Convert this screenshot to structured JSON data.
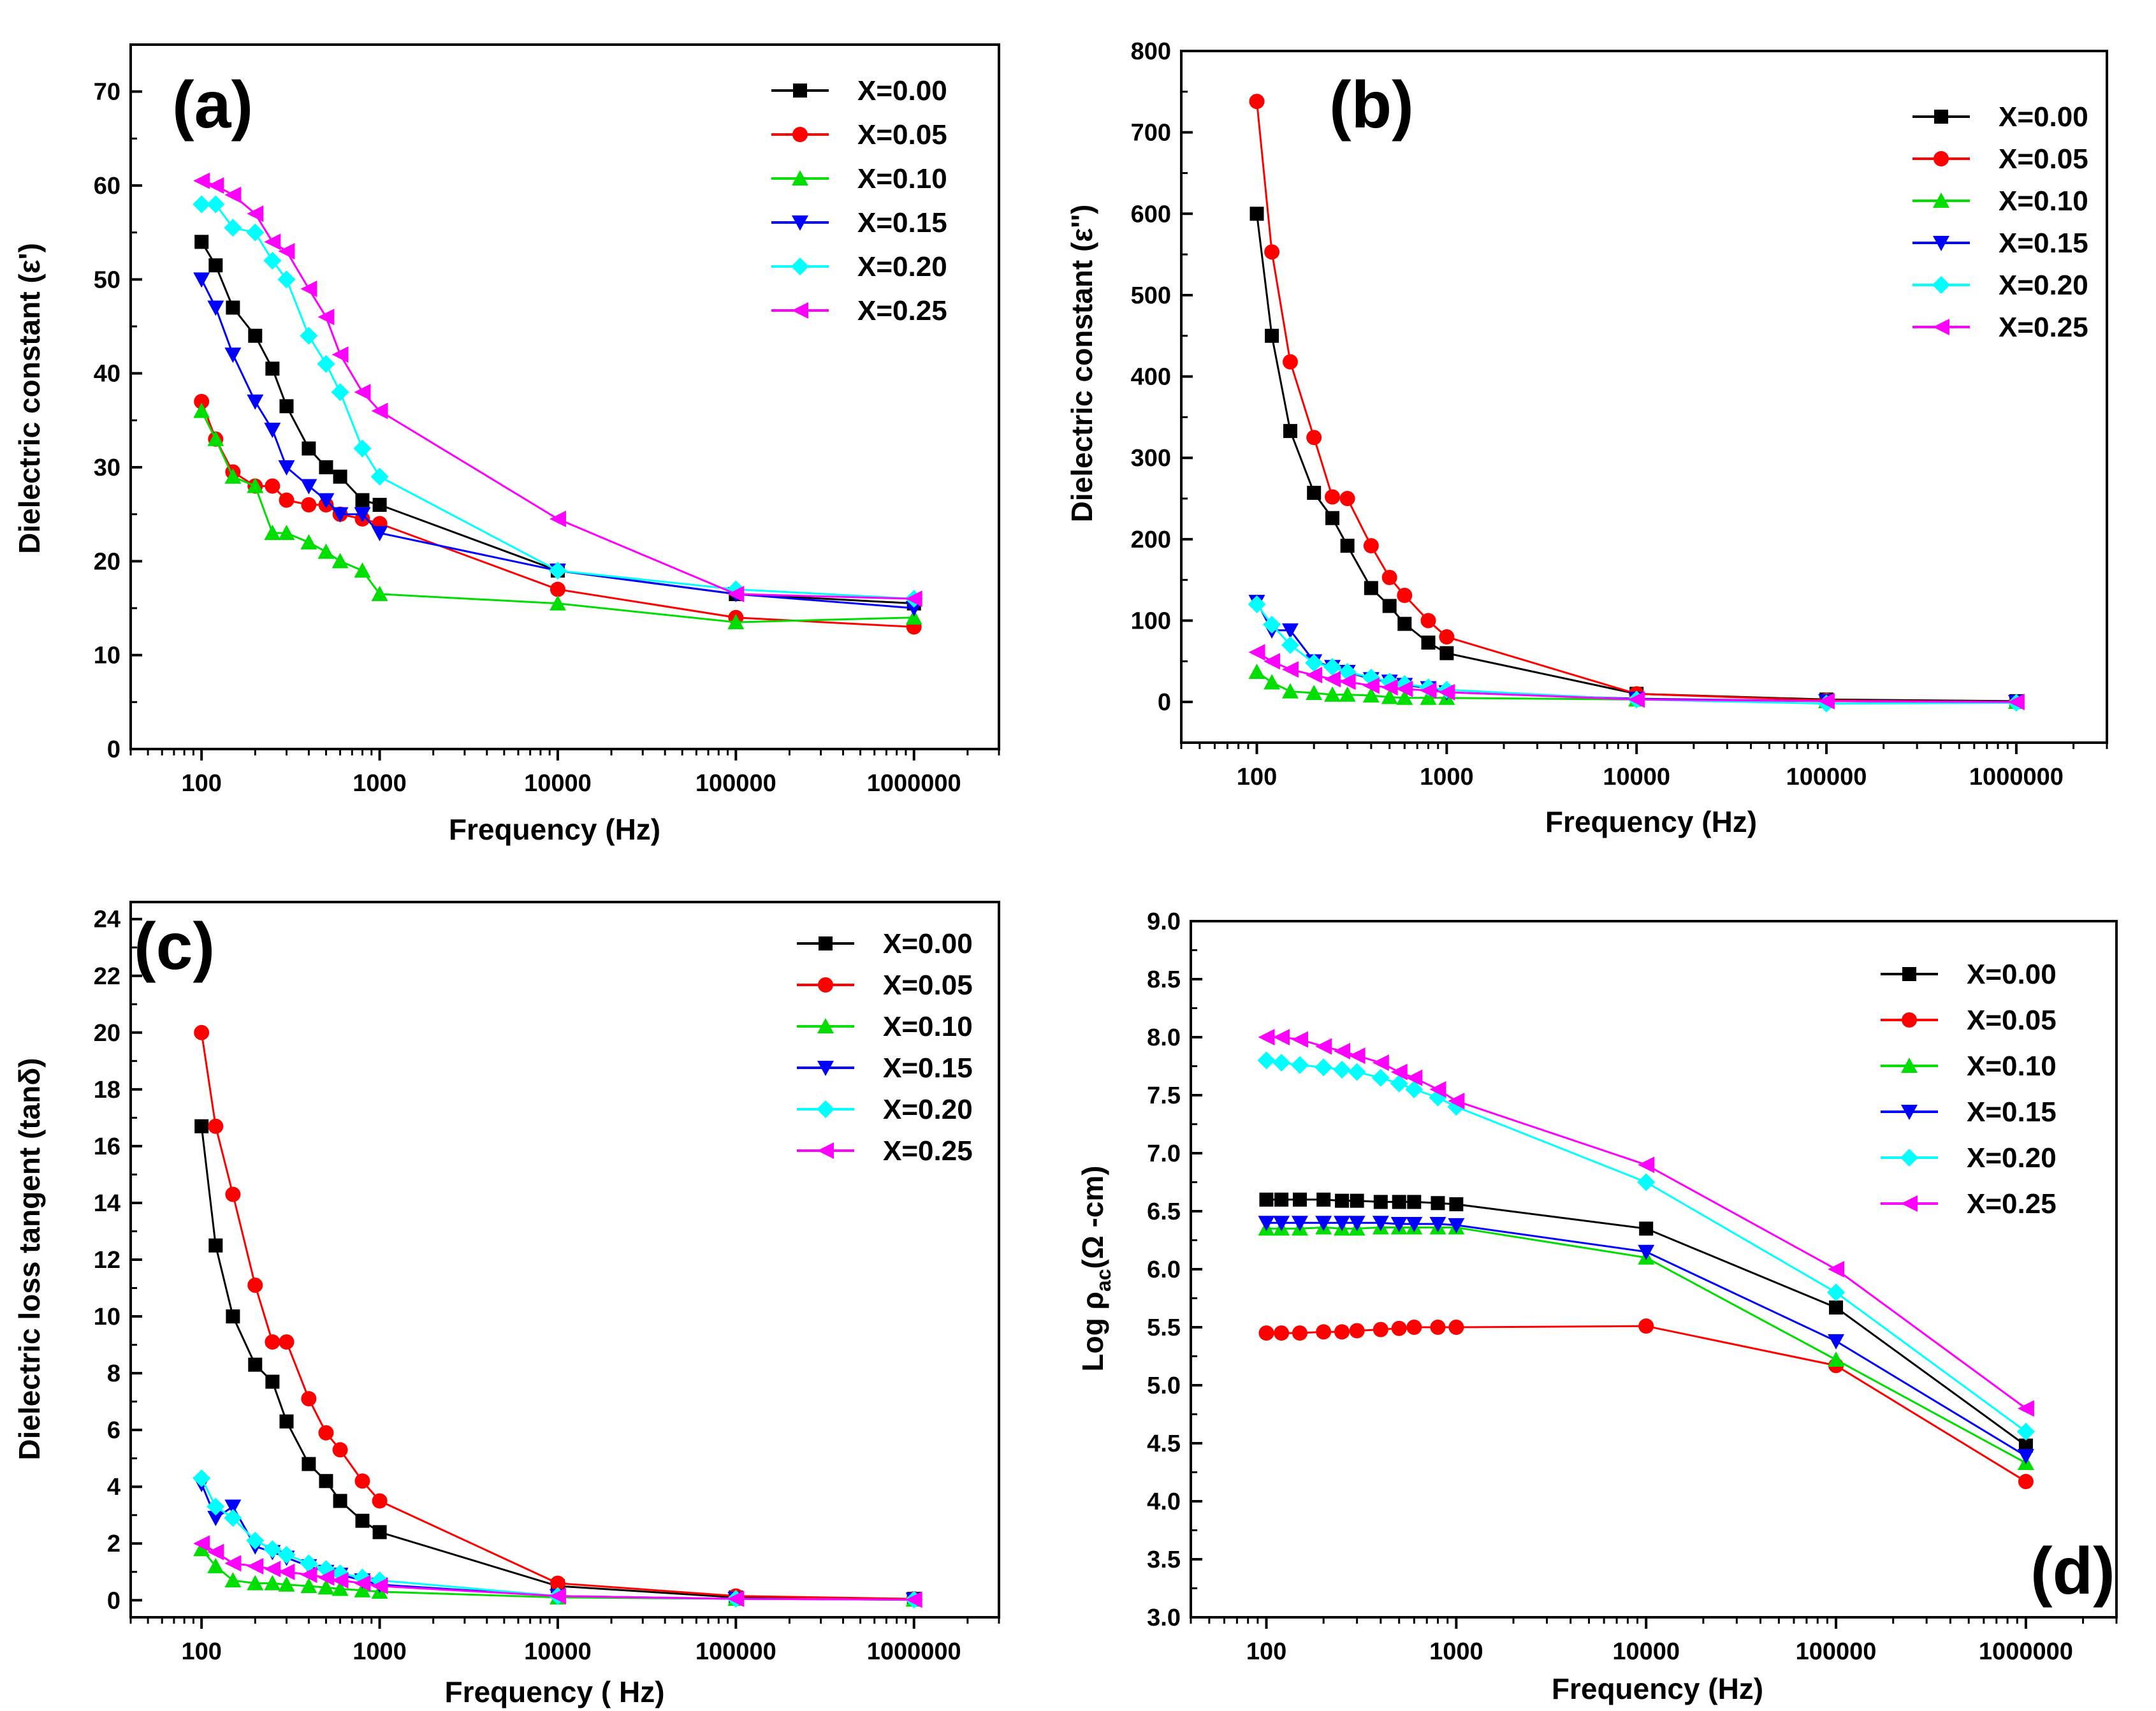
{
  "colors": [
    "#000000",
    "#ff0000",
    "#00dd00",
    "#0000ff",
    "#00ffff",
    "#ff00ff"
  ],
  "chart_data": [
    {
      "id": "a",
      "type": "line",
      "panel_label": "(a)",
      "xscale": "log",
      "xlabel": "Frequency (Hz)",
      "ylabel": "Dielectric constant (ε')",
      "xlim": [
        40,
        3000000
      ],
      "ylim": [
        0,
        75
      ],
      "yticks": [
        0,
        10,
        20,
        30,
        40,
        50,
        60,
        70
      ],
      "ytick_labels": [
        "0",
        "10",
        "20",
        "30",
        "40",
        "50",
        "60",
        "70"
      ],
      "xticks": [
        100,
        1000,
        10000,
        100000,
        1000000
      ],
      "xtick_labels": [
        "100",
        "1000",
        "10000",
        "100000",
        "1000000"
      ],
      "legend_position": "top-right",
      "x": [
        100,
        120,
        150,
        200,
        250,
        300,
        400,
        500,
        600,
        800,
        1000,
        10000,
        100000,
        1000000
      ],
      "series": [
        {
          "name": "X=0.00",
          "marker": "square",
          "values": [
            54,
            51.5,
            47,
            44,
            40.5,
            36.5,
            32,
            30,
            29,
            26.5,
            26,
            19,
            16.5,
            15.5
          ]
        },
        {
          "name": "X=0.05",
          "marker": "circle",
          "values": [
            37,
            33,
            29.5,
            28,
            28,
            26.5,
            26,
            26,
            25,
            24.5,
            24,
            17,
            14,
            13
          ]
        },
        {
          "name": "X=0.10",
          "marker": "triangle-up",
          "values": [
            36,
            33,
            29,
            28,
            23,
            23,
            22,
            21,
            20,
            19,
            16.5,
            15.5,
            13.5,
            14
          ]
        },
        {
          "name": "X=0.15",
          "marker": "triangle-down",
          "values": [
            50,
            47,
            42,
            37,
            34,
            30,
            28,
            26.5,
            25,
            25,
            23,
            19,
            16.5,
            15
          ]
        },
        {
          "name": "X=0.20",
          "marker": "diamond",
          "values": [
            58,
            58,
            55.5,
            55,
            52,
            50,
            44,
            41,
            38,
            32,
            29,
            19,
            17,
            16
          ]
        },
        {
          "name": "X=0.25",
          "marker": "triangle-left",
          "values": [
            60.5,
            60,
            59,
            57,
            54,
            53,
            49,
            46,
            42,
            38,
            36,
            24.5,
            16.5,
            16
          ]
        }
      ]
    },
    {
      "id": "b",
      "type": "line",
      "panel_label": "(b)",
      "xscale": "log",
      "xlabel": "Frequency (Hz)",
      "ylabel": "Dielectric constant (ε'')",
      "xlim": [
        40,
        3000000
      ],
      "ylim": [
        -50,
        800
      ],
      "yticks": [
        0,
        100,
        200,
        300,
        400,
        500,
        600,
        700,
        800
      ],
      "ytick_labels": [
        "0",
        "100",
        "200",
        "300",
        "400",
        "500",
        "600",
        "700",
        "800"
      ],
      "xticks": [
        100,
        1000,
        10000,
        100000,
        1000000
      ],
      "xtick_labels": [
        "100",
        "1000",
        "10000",
        "100000",
        "1000000"
      ],
      "legend_position": "top-right",
      "x": [
        100,
        120,
        150,
        200,
        250,
        300,
        400,
        500,
        600,
        800,
        1000,
        10000,
        100000,
        1000000
      ],
      "series": [
        {
          "name": "X=0.00",
          "marker": "square",
          "values": [
            600,
            450,
            333,
            257,
            226,
            192,
            140,
            118,
            96,
            73,
            60,
            10,
            3,
            1
          ]
        },
        {
          "name": "X=0.05",
          "marker": "circle",
          "values": [
            738,
            553,
            418,
            325,
            252,
            250,
            192,
            153,
            131,
            100,
            80,
            10,
            2,
            0
          ]
        },
        {
          "name": "X=0.10",
          "marker": "triangle-up",
          "values": [
            37,
            24,
            13,
            11,
            9,
            9,
            8,
            6,
            5,
            5,
            5,
            3,
            1,
            0
          ]
        },
        {
          "name": "X=0.15",
          "marker": "triangle-down",
          "values": [
            123,
            88,
            88,
            50,
            43,
            37,
            28,
            25,
            21,
            17,
            12,
            4,
            1,
            0
          ]
        },
        {
          "name": "X=0.20",
          "marker": "diamond",
          "values": [
            120,
            95,
            70,
            48,
            43,
            37,
            30,
            25,
            22,
            18,
            15,
            3,
            -2,
            -1
          ]
        },
        {
          "name": "X=0.25",
          "marker": "triangle-left",
          "values": [
            61,
            50,
            40,
            33,
            28,
            25,
            20,
            18,
            16,
            14,
            12,
            3,
            1,
            0
          ]
        }
      ]
    },
    {
      "id": "c",
      "type": "line",
      "panel_label": "(c)",
      "xscale": "log",
      "xlabel": "Frequency ( Hz)",
      "ylabel": "Dielectric loss tangent (tanδ)",
      "xlim": [
        40,
        3000000
      ],
      "ylim": [
        -0.6,
        24.6
      ],
      "yticks": [
        0,
        2,
        4,
        6,
        8,
        10,
        12,
        14,
        16,
        18,
        20,
        22,
        24
      ],
      "ytick_labels": [
        "0",
        "2",
        "4",
        "6",
        "8",
        "10",
        "12",
        "14",
        "16",
        "18",
        "20",
        "22",
        "24"
      ],
      "xticks": [
        100,
        1000,
        10000,
        100000,
        1000000
      ],
      "xtick_labels": [
        "100",
        "1000",
        "10000",
        "100000",
        "1000000"
      ],
      "legend_position": "top-right",
      "x": [
        100,
        120,
        150,
        200,
        250,
        300,
        400,
        500,
        600,
        800,
        1000,
        10000,
        100000,
        1000000
      ],
      "series": [
        {
          "name": "X=0.00",
          "marker": "square",
          "values": [
            16.7,
            12.5,
            10,
            8.3,
            7.7,
            6.3,
            4.8,
            4.2,
            3.5,
            2.8,
            2.4,
            0.5,
            0.1,
            0.05
          ]
        },
        {
          "name": "X=0.05",
          "marker": "circle",
          "values": [
            20,
            16.7,
            14.3,
            11.1,
            9.1,
            9.1,
            7.1,
            5.9,
            5.3,
            4.2,
            3.5,
            0.6,
            0.15,
            0.05
          ]
        },
        {
          "name": "X=0.10",
          "marker": "triangle-up",
          "values": [
            1.8,
            1.2,
            0.7,
            0.6,
            0.6,
            0.55,
            0.5,
            0.45,
            0.4,
            0.35,
            0.3,
            0.1,
            0.05,
            0.02
          ]
        },
        {
          "name": "X=0.15",
          "marker": "triangle-down",
          "values": [
            4.1,
            2.9,
            3.3,
            1.9,
            1.7,
            1.5,
            1.2,
            1.0,
            0.9,
            0.7,
            0.55,
            0.15,
            0.05,
            0.02
          ]
        },
        {
          "name": "X=0.20",
          "marker": "diamond",
          "values": [
            4.3,
            3.3,
            2.9,
            2.1,
            1.8,
            1.6,
            1.3,
            1.1,
            0.95,
            0.8,
            0.7,
            0.15,
            0.05,
            0.02
          ]
        },
        {
          "name": "X=0.25",
          "marker": "triangle-left",
          "values": [
            2.0,
            1.7,
            1.3,
            1.2,
            1.1,
            1.0,
            0.9,
            0.8,
            0.7,
            0.6,
            0.5,
            0.15,
            0.05,
            0.02
          ]
        }
      ]
    },
    {
      "id": "d",
      "type": "line",
      "panel_label": "(d)",
      "xscale": "log",
      "xlabel": "Frequency (Hz)",
      "ylabel_main": "Log ρ",
      "ylabel_sub": "ac",
      "ylabel_unit": "(Ω -cm)",
      "xlim": [
        40,
        3000000
      ],
      "ylim": [
        3.0,
        9.0
      ],
      "yticks": [
        3.0,
        3.5,
        4.0,
        4.5,
        5.0,
        5.5,
        6.0,
        6.5,
        7.0,
        7.5,
        8.0,
        8.5,
        9.0
      ],
      "ytick_labels": [
        "3.0",
        "3.5",
        "4.0",
        "4.5",
        "5.0",
        "5.5",
        "6.0",
        "6.5",
        "7.0",
        "7.5",
        "8.0",
        "8.5",
        "9.0"
      ],
      "xticks": [
        100,
        1000,
        10000,
        100000,
        1000000
      ],
      "xtick_labels": [
        "100",
        "1000",
        "10000",
        "100000",
        "1000000"
      ],
      "legend_position": "top-right",
      "x": [
        100,
        120,
        150,
        200,
        250,
        300,
        400,
        500,
        600,
        800,
        1000,
        10000,
        100000,
        1000000
      ],
      "series": [
        {
          "name": "X=0.00",
          "marker": "square",
          "values": [
            6.6,
            6.6,
            6.6,
            6.6,
            6.59,
            6.59,
            6.58,
            6.58,
            6.58,
            6.57,
            6.56,
            6.35,
            5.67,
            4.48
          ]
        },
        {
          "name": "X=0.05",
          "marker": "circle",
          "values": [
            5.45,
            5.45,
            5.45,
            5.46,
            5.46,
            5.47,
            5.48,
            5.49,
            5.5,
            5.5,
            5.5,
            5.51,
            5.17,
            4.17
          ]
        },
        {
          "name": "X=0.10",
          "marker": "triangle-up",
          "values": [
            6.35,
            6.35,
            6.35,
            6.36,
            6.35,
            6.35,
            6.36,
            6.36,
            6.36,
            6.36,
            6.36,
            6.1,
            5.22,
            4.33
          ]
        },
        {
          "name": "X=0.15",
          "marker": "triangle-down",
          "values": [
            6.4,
            6.4,
            6.4,
            6.4,
            6.4,
            6.4,
            6.4,
            6.39,
            6.39,
            6.39,
            6.38,
            6.15,
            5.38,
            4.39
          ]
        },
        {
          "name": "X=0.20",
          "marker": "diamond",
          "values": [
            7.8,
            7.78,
            7.76,
            7.74,
            7.72,
            7.7,
            7.65,
            7.6,
            7.55,
            7.48,
            7.4,
            6.75,
            5.8,
            4.6
          ]
        },
        {
          "name": "X=0.25",
          "marker": "triangle-left",
          "values": [
            8.0,
            8.0,
            7.98,
            7.92,
            7.88,
            7.84,
            7.78,
            7.7,
            7.65,
            7.55,
            7.45,
            6.9,
            6.0,
            4.8
          ]
        }
      ]
    }
  ]
}
